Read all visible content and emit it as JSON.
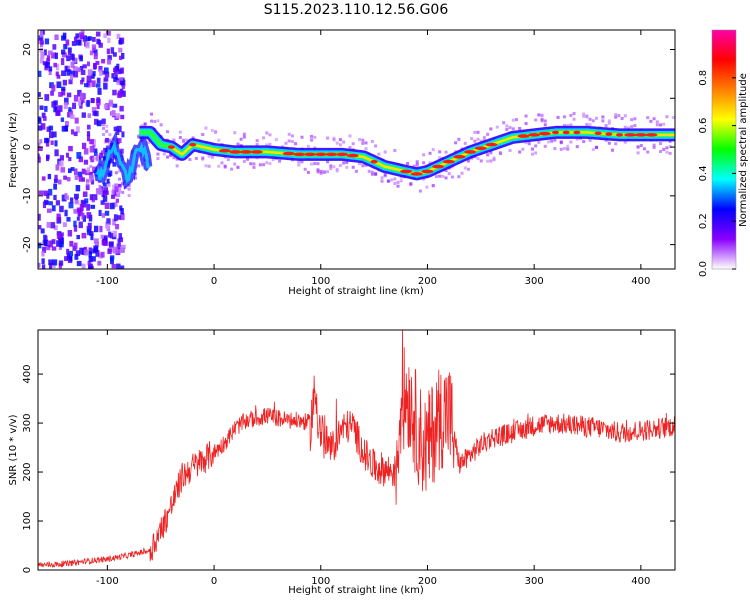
{
  "figure": {
    "title": "S115.2023.110.12.56.G06"
  },
  "chart_data": [
    {
      "type": "heatmap",
      "xlabel": "Height of straight line (km)",
      "ylabel": "Frequency (Hz)",
      "xlim": [
        -165,
        432
      ],
      "ylim": [
        -25,
        24
      ],
      "xticks": [
        -100,
        0,
        100,
        200,
        300,
        400
      ],
      "yticks": [
        -20,
        -10,
        0,
        10,
        20
      ],
      "colorbar": {
        "label": "Normalized spectral amplitude",
        "range": [
          0,
          1
        ],
        "ticks": [
          0.0,
          0.2,
          0.4,
          0.6,
          0.8
        ],
        "colormap": [
          "#ffffff",
          "#8a00ff",
          "#0000ff",
          "#00ffff",
          "#00ff00",
          "#ffff00",
          "#ff8000",
          "#ff0000",
          "#ff00aa"
        ]
      },
      "ridge": {
        "x": [
          -60,
          -50,
          -40,
          -30,
          -20,
          -10,
          0,
          20,
          50,
          80,
          100,
          120,
          140,
          160,
          180,
          190,
          200,
          220,
          240,
          260,
          280,
          300,
          320,
          350,
          380,
          400,
          432
        ],
        "y": [
          3,
          0.5,
          0,
          -1.5,
          0.5,
          0,
          -0.5,
          -1,
          -1,
          -1.5,
          -1.5,
          -1.5,
          -2,
          -4,
          -5,
          -5.5,
          -5,
          -3,
          -1,
          0.5,
          2,
          2.5,
          3,
          3,
          2.5,
          2.5,
          2.5
        ]
      }
    },
    {
      "type": "line",
      "xlabel": "Height of straight line (km)",
      "ylabel": "SNR (10 * v/v)",
      "xlim": [
        -165,
        432
      ],
      "ylim": [
        0,
        490
      ],
      "xticks": [
        -100,
        0,
        100,
        200,
        300,
        400
      ],
      "yticks": [
        0,
        100,
        200,
        300,
        400
      ],
      "color": "#ee2222",
      "series": [
        {
          "x": [
            -165,
            -140,
            -120,
            -100,
            -80,
            -60,
            -50,
            -40,
            -30,
            -20,
            -10,
            0,
            10,
            20,
            30,
            40,
            50,
            60,
            70,
            80,
            90,
            95,
            100,
            110,
            120,
            130,
            140,
            150,
            160,
            170,
            175,
            180,
            185,
            190,
            195,
            200,
            210,
            220,
            230,
            240,
            250,
            260,
            280,
            300,
            320,
            340,
            360,
            380,
            400,
            420,
            432
          ],
          "y": [
            10,
            12,
            18,
            22,
            30,
            40,
            80,
            130,
            190,
            210,
            225,
            240,
            260,
            290,
            305,
            310,
            315,
            310,
            305,
            305,
            300,
            360,
            280,
            245,
            290,
            295,
            240,
            210,
            205,
            200,
            330,
            360,
            340,
            290,
            260,
            250,
            310,
            325,
            215,
            235,
            255,
            270,
            280,
            295,
            300,
            295,
            290,
            280,
            285,
            290,
            295
          ]
        }
      ]
    }
  ]
}
